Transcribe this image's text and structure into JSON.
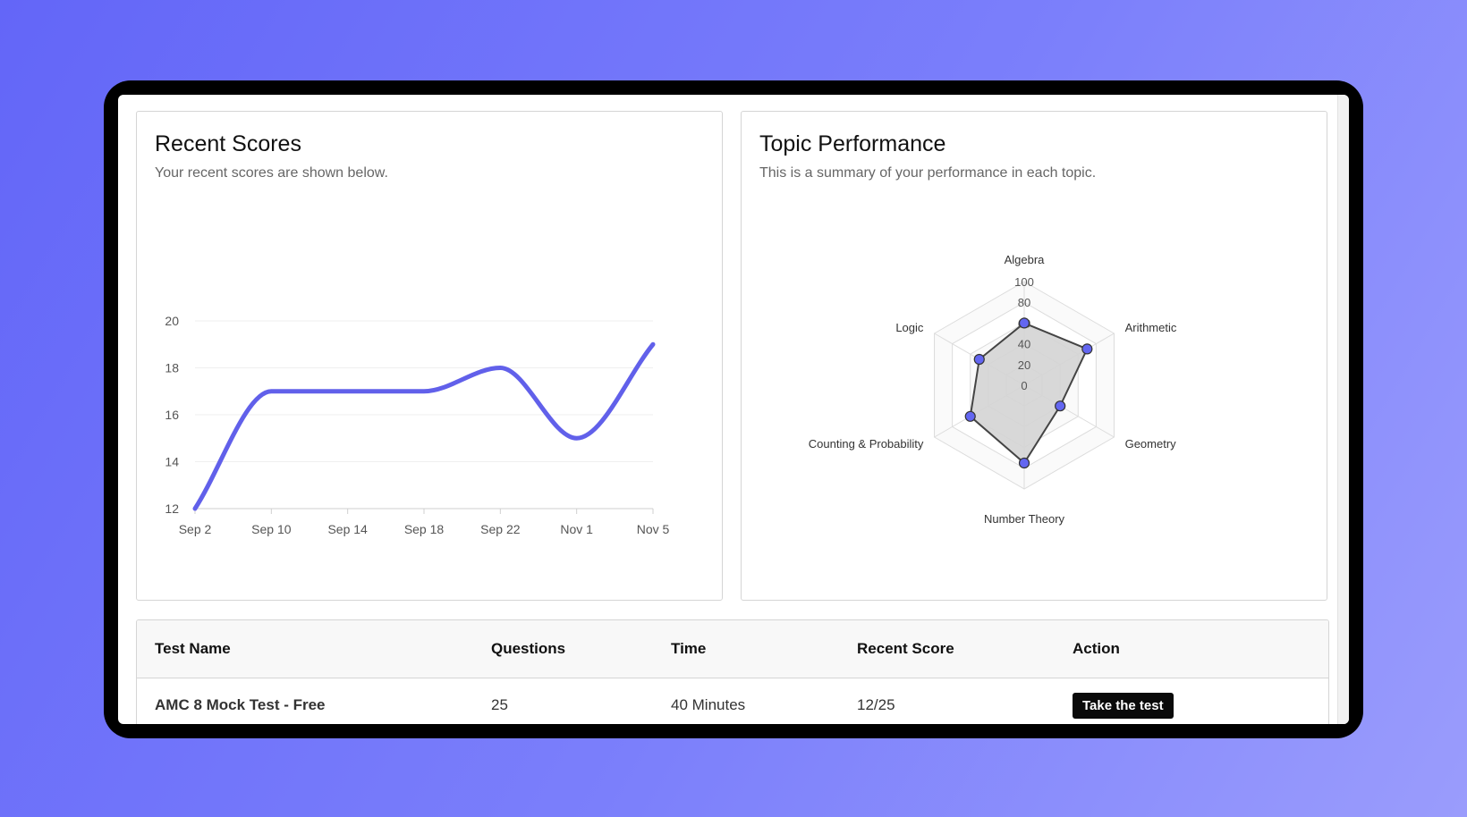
{
  "recent_scores": {
    "title": "Recent Scores",
    "subtitle": "Your recent scores are shown below."
  },
  "topic_performance": {
    "title": "Topic Performance",
    "subtitle": "This is a summary of your performance in each topic."
  },
  "chart_data": [
    {
      "type": "line",
      "x": [
        "Sep 2",
        "Sep 10",
        "Sep 14",
        "Sep 18",
        "Sep 22",
        "Nov 1",
        "Nov 5"
      ],
      "series": [
        {
          "values": [
            12,
            17,
            17,
            17,
            18,
            15,
            19
          ],
          "color": "#6160ea"
        }
      ],
      "ylim": [
        12,
        20
      ],
      "yticks": [
        12,
        14,
        16,
        18,
        20
      ],
      "grid": true,
      "smooth": true
    },
    {
      "type": "radar",
      "axes": [
        "Algebra",
        "Arithmetic",
        "Geometry",
        "Number Theory",
        "Counting & Probability",
        "Logic"
      ],
      "series": [
        {
          "values": [
            60,
            70,
            40,
            75,
            60,
            50
          ],
          "fill": "#d4d4d4",
          "stroke": "#444444",
          "point_color": "#6366f1"
        }
      ],
      "rlim": [
        0,
        100
      ],
      "rticks": [
        0,
        20,
        40,
        60,
        80,
        100
      ]
    }
  ],
  "table": {
    "headers": {
      "test_name": "Test Name",
      "questions": "Questions",
      "time": "Time",
      "recent_score": "Recent Score",
      "action": "Action"
    },
    "rows": [
      {
        "test_name": "AMC 8 Mock Test - Free",
        "questions": "25",
        "time": "40 Minutes",
        "recent_score": "12/25",
        "action": "Take the test"
      }
    ]
  }
}
